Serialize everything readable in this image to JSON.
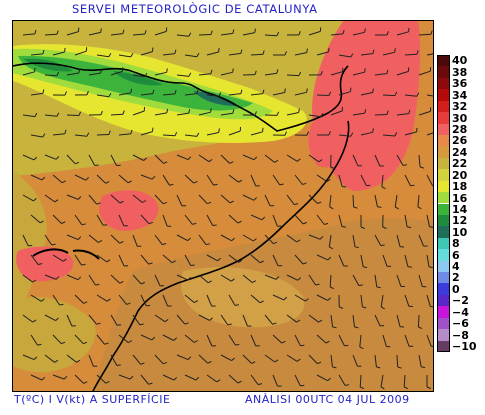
{
  "title": "SERVEI METEOROLÒGIC DE CATALUNYA",
  "footer_left": "T(ºC) I V(kt) A SUPERFÍCIE",
  "footer_right": "ANÀLISI 00UTC 04 JUL 2009",
  "legend": [
    {
      "label": "40",
      "color": "#4a0a0a"
    },
    {
      "label": "38",
      "color": "#6a0a0a"
    },
    {
      "label": "36",
      "color": "#8c0a0a"
    },
    {
      "label": "34",
      "color": "#b40a0a"
    },
    {
      "label": "32",
      "color": "#d41e1e"
    },
    {
      "label": "30",
      "color": "#e83c3c"
    },
    {
      "label": "28",
      "color": "#f06060"
    },
    {
      "label": "26",
      "color": "#e8884a"
    },
    {
      "label": "24",
      "color": "#d69a3c"
    },
    {
      "label": "22",
      "color": "#c8b43c"
    },
    {
      "label": "20",
      "color": "#d2d23c"
    },
    {
      "label": "18",
      "color": "#e6e630"
    },
    {
      "label": "16",
      "color": "#a0dc3c"
    },
    {
      "label": "14",
      "color": "#3cb43c"
    },
    {
      "label": "12",
      "color": "#1e8c3c"
    },
    {
      "label": "10",
      "color": "#1e6e5a"
    },
    {
      "label": "8",
      "color": "#3cc8b4"
    },
    {
      "label": "6",
      "color": "#64dcdc"
    },
    {
      "label": "4",
      "color": "#8cc8f0"
    },
    {
      "label": "2",
      "color": "#6e8ce6"
    },
    {
      "label": "0",
      "color": "#3c3cdc"
    },
    {
      "label": "−2",
      "color": "#5a28c8"
    },
    {
      "label": "−4",
      "color": "#c814dc"
    },
    {
      "label": "−6",
      "color": "#a050c8"
    },
    {
      "label": "−8",
      "color": "#b48cc8"
    },
    {
      "label": "−10",
      "color": "#643c64"
    }
  ]
}
